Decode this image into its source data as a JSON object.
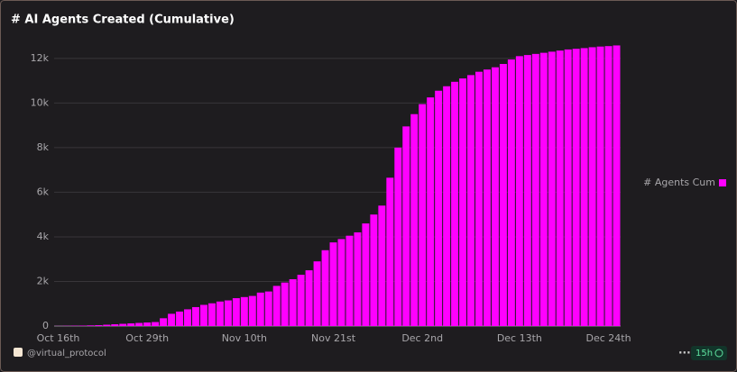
{
  "chart_data": {
    "type": "bar",
    "title": "# AI Agents Created (Cumulative)",
    "categories": [
      "Oct 16th",
      null,
      null,
      null,
      null,
      null,
      null,
      null,
      null,
      null,
      null,
      "Oct 29th",
      null,
      null,
      null,
      null,
      null,
      null,
      null,
      null,
      null,
      null,
      null,
      "Nov 10th",
      null,
      null,
      null,
      null,
      null,
      null,
      null,
      null,
      null,
      null,
      "Nov 21st",
      null,
      null,
      null,
      null,
      null,
      null,
      null,
      null,
      null,
      null,
      "Dec 2nd",
      null,
      null,
      null,
      null,
      null,
      null,
      null,
      null,
      null,
      null,
      null,
      "Dec 13th",
      null,
      null,
      null,
      null,
      null,
      null,
      null,
      null,
      null,
      null,
      "Dec 24th",
      null
    ],
    "series": [
      {
        "name": "# Agents Cum",
        "color": "#ff00ff",
        "values": [
          5,
          10,
          15,
          20,
          30,
          40,
          60,
          80,
          100,
          120,
          140,
          160,
          180,
          350,
          550,
          650,
          750,
          850,
          950,
          1020,
          1100,
          1150,
          1250,
          1300,
          1350,
          1500,
          1550,
          1800,
          1950,
          2100,
          2300,
          2500,
          2900,
          3400,
          3750,
          3900,
          4050,
          4200,
          4600,
          5000,
          5400,
          6650,
          8000,
          8950,
          9500,
          9950,
          10250,
          10550,
          10750,
          10950,
          11100,
          11250,
          11400,
          11500,
          11600,
          11750,
          11950,
          12100,
          12150,
          12200,
          12250,
          12300,
          12350,
          12400,
          12430,
          12460,
          12500,
          12530,
          12550,
          12580
        ]
      }
    ],
    "ylim": [
      0,
      12800
    ],
    "yticks": [
      0,
      {
        "value": 2000,
        "label": "2k"
      },
      {
        "value": 4000,
        "label": "4k"
      },
      {
        "value": 6000,
        "label": "6k"
      },
      {
        "value": 8000,
        "label": "8k"
      },
      {
        "value": 10000,
        "label": "10k"
      },
      {
        "value": 12000,
        "label": "12k"
      }
    ],
    "grid": true,
    "legend": "right"
  },
  "footer": {
    "author": "@virtual_protocol",
    "age": "15h"
  }
}
